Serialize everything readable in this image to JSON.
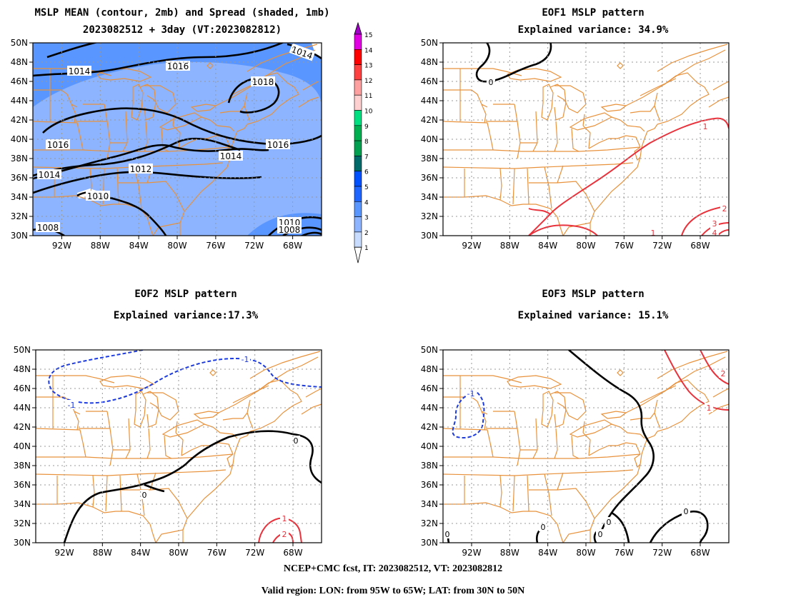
{
  "panels": [
    {
      "id": "mean",
      "title_line1": "MSLP MEAN (contour, 2mb) and Spread (shaded, 1mb)",
      "title_line2": "2023082512 + 3day (VT:2023082812)",
      "contour_labels": [
        "1014",
        "1016",
        "1018",
        "1016",
        "1016",
        "1014",
        "1014",
        "1012",
        "1010",
        "1008",
        "1010",
        "1008",
        "1014"
      ]
    },
    {
      "id": "eof1",
      "title_line1": "EOF1 MSLP pattern",
      "title_line2": "Explained variance: 34.9%",
      "contour_labels": [
        "0",
        "1",
        "2",
        "3",
        "4",
        "1"
      ]
    },
    {
      "id": "eof2",
      "title_line1": "EOF2 MSLP pattern",
      "title_line2": "Explained variance:17.3%",
      "contour_labels": [
        "-1",
        "-1",
        "0",
        "0",
        "1",
        "2"
      ]
    },
    {
      "id": "eof3",
      "title_line1": "EOF3 MSLP pattern",
      "title_line2": "Explained variance: 15.1%",
      "contour_labels": [
        "-1",
        "1",
        "2",
        "0",
        "0",
        "0",
        "0",
        "0"
      ]
    }
  ],
  "axes": {
    "lat_labels": [
      "50N",
      "48N",
      "46N",
      "44N",
      "42N",
      "40N",
      "38N",
      "36N",
      "34N",
      "32N",
      "30N"
    ],
    "lon_labels": [
      "92W",
      "88W",
      "84W",
      "80W",
      "76W",
      "72W",
      "68W"
    ]
  },
  "colorbar": {
    "labels": [
      "15",
      "14",
      "13",
      "12",
      "11",
      "10",
      "9",
      "8",
      "7",
      "6",
      "5",
      "4",
      "3",
      "2",
      "1"
    ],
    "colors": [
      "#a000c8",
      "#e100e1",
      "#ff0000",
      "#ff4040",
      "#ffa0a0",
      "#ffd0d0",
      "#00e080",
      "#00b050",
      "#00a050",
      "#006a6a",
      "#0050ff",
      "#1e64ff",
      "#5a96ff",
      "#8cb4ff",
      "#c8dcff"
    ]
  },
  "colors": {
    "coast": "#e8923c",
    "positive": "#e8323c",
    "negative": "#1e3cdc",
    "contour": "#000000",
    "shade_low": "#8cb4ff",
    "shade_mid": "#5a96ff"
  },
  "footer": {
    "line1": "NCEP+CMC fcst, IT: 2023082512, VT: 2023082812",
    "line2": "Valid region: LON: from 95W to 65W; LAT: from 30N to 50N"
  }
}
